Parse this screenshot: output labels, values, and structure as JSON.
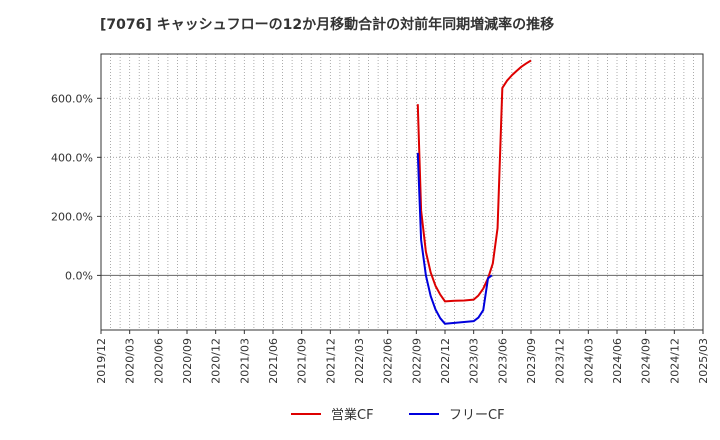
{
  "chart_data": {
    "type": "line",
    "title": "[7076]  キャッシュフローの12か月移動合計の対前年同期増減率の推移",
    "xlabel": "",
    "ylabel": "",
    "x_ticks": [
      "2019/12",
      "2020/03",
      "2020/06",
      "2020/09",
      "2020/12",
      "2021/03",
      "2021/06",
      "2021/09",
      "2021/12",
      "2022/03",
      "2022/06",
      "2022/09",
      "2022/12",
      "2023/03",
      "2023/06",
      "2023/09",
      "2023/12",
      "2024/03",
      "2024/06",
      "2024/09",
      "2024/12",
      "2025/03"
    ],
    "y_ticks": [
      "0.0%",
      "200.0%",
      "400.0%",
      "600.0%"
    ],
    "y_tick_values": [
      0,
      200,
      400,
      600
    ],
    "ylim": [
      -185,
      750
    ],
    "grid": true,
    "legend_position": "bottom",
    "series": [
      {
        "name": "営業CF",
        "color": "#dd0000",
        "points": [
          [
            33.15,
            580
          ],
          [
            33.5,
            220
          ],
          [
            34.0,
            80
          ],
          [
            34.5,
            10
          ],
          [
            35.0,
            -35
          ],
          [
            35.5,
            -65
          ],
          [
            36.0,
            -88
          ],
          [
            37.0,
            -86
          ],
          [
            38.0,
            -85
          ],
          [
            39.0,
            -82
          ],
          [
            39.5,
            -68
          ],
          [
            40.0,
            -45
          ],
          [
            40.5,
            -10
          ],
          [
            41.0,
            40
          ],
          [
            41.5,
            160
          ],
          [
            42.0,
            635
          ],
          [
            42.5,
            660
          ],
          [
            43.0,
            678
          ],
          [
            43.5,
            693
          ],
          [
            44.0,
            707
          ],
          [
            44.5,
            718
          ],
          [
            45.0,
            728
          ]
        ]
      },
      {
        "name": "フリーCF",
        "color": "#0000dd",
        "points": [
          [
            33.15,
            415
          ],
          [
            33.5,
            120
          ],
          [
            34.0,
            0
          ],
          [
            34.5,
            -70
          ],
          [
            35.0,
            -115
          ],
          [
            35.5,
            -145
          ],
          [
            36.0,
            -164
          ],
          [
            37.0,
            -161
          ],
          [
            38.0,
            -158
          ],
          [
            39.0,
            -155
          ],
          [
            39.5,
            -143
          ],
          [
            40.0,
            -118
          ],
          [
            40.5,
            -10
          ],
          [
            40.9,
            0
          ]
        ]
      }
    ]
  }
}
